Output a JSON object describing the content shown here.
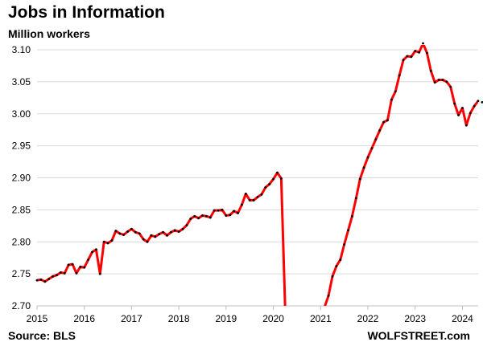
{
  "chart_data": {
    "type": "line",
    "title": "Jobs in Information",
    "subtitle": "Million workers",
    "source": "Source: BLS",
    "brand": "WOLFSTREET.com",
    "xlabel": "",
    "ylabel": "",
    "xlim": [
      2015.0,
      2024.333
    ],
    "ylim": [
      2.7,
      3.1
    ],
    "x_ticks": [
      2015,
      2016,
      2017,
      2018,
      2019,
      2020,
      2021,
      2022,
      2023,
      2024
    ],
    "x_tick_labels": [
      "2015",
      "2016",
      "2017",
      "2018",
      "2019",
      "2020",
      "2021",
      "2022",
      "2023",
      "2024"
    ],
    "y_ticks": [
      2.7,
      2.75,
      2.8,
      2.85,
      2.9,
      2.95,
      3.0,
      3.05,
      3.1
    ],
    "y_tick_labels": [
      "2.70",
      "2.75",
      "2.80",
      "2.85",
      "2.90",
      "2.95",
      "3.00",
      "3.05",
      "3.10"
    ],
    "grid": "horizontal",
    "line_color": "#ff0000",
    "marker_color": "#000000",
    "series": [
      {
        "values": [
          2.74,
          2.741,
          2.738,
          2.742,
          2.746,
          2.748,
          2.752,
          2.751,
          2.764,
          2.765,
          2.751,
          2.761,
          2.76,
          2.772,
          2.784,
          2.788,
          2.75,
          2.8,
          2.798,
          2.802,
          2.817,
          2.813,
          2.811,
          2.816,
          2.82,
          2.815,
          2.813,
          2.804,
          2.8,
          2.81,
          2.808,
          2.812,
          2.815,
          2.81,
          2.815,
          2.818,
          2.816,
          2.82,
          2.826,
          2.836,
          2.84,
          2.837,
          2.841,
          2.84,
          2.838,
          2.849,
          2.849,
          2.85,
          2.841,
          2.842,
          2.848,
          2.845,
          2.858,
          2.875,
          2.865,
          2.865,
          2.87,
          2.874,
          2.885,
          2.89,
          2.898,
          2.908,
          2.899,
          2.695,
          null,
          null,
          null,
          null,
          null,
          null,
          null,
          null,
          null,
          2.698,
          2.716,
          2.746,
          2.762,
          2.772,
          2.796,
          2.818,
          2.84,
          2.868,
          2.898,
          2.916,
          2.932,
          2.946,
          2.96,
          2.974,
          2.987,
          2.99,
          3.022,
          3.035,
          3.06,
          3.084,
          3.09,
          3.089,
          3.098,
          3.096,
          3.11,
          3.095,
          3.067,
          3.049,
          3.053,
          3.053,
          3.05,
          3.042,
          3.016,
          2.998,
          3.009,
          2.982,
          3.001,
          3.012,
          3.02,
          3.018,
          3.022,
          3.012
        ]
      }
    ]
  }
}
